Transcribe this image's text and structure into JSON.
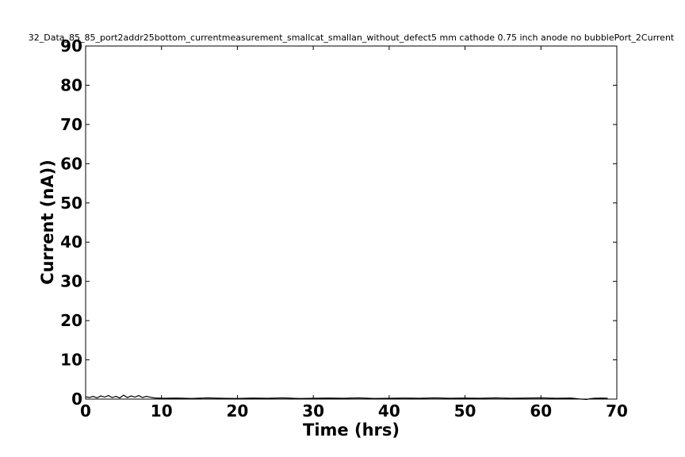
{
  "chart_data": {
    "type": "line",
    "title": "32_Data_85_85_port2addr25bottom_currentmeasurement_smallcat_smallan_without_defect5 mm cathode 0.75 inch anode no bubblePort_2Current",
    "xlabel": "Time (hrs)",
    "ylabel": "Current (nA))",
    "xlim": [
      0,
      70
    ],
    "ylim": [
      0,
      90
    ],
    "xticks": [
      0,
      10,
      20,
      30,
      40,
      50,
      60,
      70
    ],
    "yticks": [
      0,
      10,
      20,
      30,
      40,
      50,
      60,
      70,
      80,
      90
    ],
    "grid": false,
    "series": [
      {
        "name": "Port_2 Current",
        "color": "#000000",
        "x": [
          0,
          0.5,
          1,
          1.5,
          2,
          2.5,
          3,
          3.5,
          4,
          4.5,
          5,
          5.5,
          6,
          6.5,
          7,
          7.5,
          8,
          8.5,
          9,
          10,
          12,
          14,
          16,
          18,
          20,
          22,
          24,
          26,
          28,
          30,
          32,
          34,
          36,
          38,
          40,
          42,
          44,
          46,
          48,
          50,
          52,
          54,
          56,
          58,
          60,
          62,
          64,
          65,
          66,
          66.5,
          67,
          68,
          68.8
        ],
        "values": [
          0.6,
          0.4,
          0.7,
          0.3,
          0.8,
          0.5,
          0.9,
          0.4,
          0.7,
          0.3,
          1.0,
          0.4,
          0.8,
          0.5,
          0.9,
          0.4,
          0.7,
          0.5,
          0.3,
          0.2,
          0.25,
          0.15,
          0.3,
          0.2,
          0.15,
          0.25,
          0.2,
          0.3,
          0.15,
          0.2,
          0.25,
          0.2,
          0.3,
          0.15,
          0.2,
          0.25,
          0.2,
          0.3,
          0.2,
          0.25,
          0.2,
          0.3,
          0.2,
          0.25,
          0.3,
          0.2,
          0.25,
          0.05,
          -0.1,
          0.1,
          0.2,
          0.25,
          0.2
        ]
      }
    ]
  }
}
